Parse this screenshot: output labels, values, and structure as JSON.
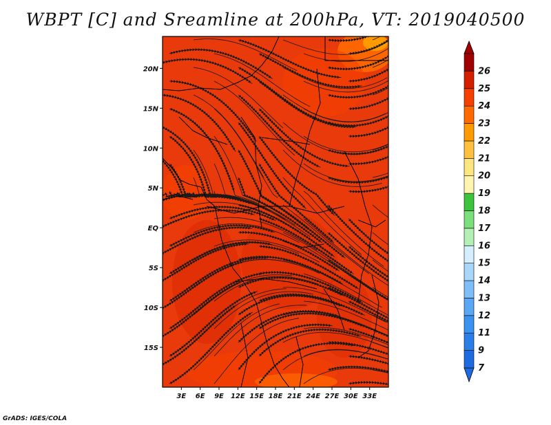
{
  "title": "WBPT [C] and Sreamline at 200hPa, VT: 2019040500",
  "credit": "GrADS: IGES/COLA",
  "map": {
    "lon_range": [
      0,
      36
    ],
    "lat_range": [
      -20,
      24
    ],
    "lon_ticks": [
      "3E",
      "6E",
      "9E",
      "12E",
      "15E",
      "18E",
      "21E",
      "24E",
      "27E",
      "30E",
      "33E"
    ],
    "lon_tick_values": [
      3,
      6,
      9,
      12,
      15,
      18,
      21,
      24,
      27,
      30,
      33
    ],
    "lat_ticks": [
      "20N",
      "15N",
      "10N",
      "5N",
      "EQ",
      "5S",
      "10S",
      "15S"
    ],
    "lat_tick_values": [
      20,
      15,
      10,
      5,
      0,
      -5,
      -10,
      -15
    ],
    "field_color": "#e83a0a",
    "streamline_color": "#1a1a1a",
    "boundary_color": "#000000"
  },
  "colorbar": {
    "labels": [
      "7",
      "9",
      "11",
      "12",
      "13",
      "14",
      "15",
      "16",
      "17",
      "18",
      "19",
      "20",
      "21",
      "22",
      "23",
      "24",
      "25",
      "26"
    ],
    "colors": [
      "#1e6ae0",
      "#2a7fe8",
      "#3a93f0",
      "#5aa8f5",
      "#7fbff8",
      "#a8d7fb",
      "#d4efff",
      "#b4f0b4",
      "#7be07b",
      "#3cc53c",
      "#fff5b0",
      "#ffe680",
      "#ffc040",
      "#ff9a00",
      "#ff6a00",
      "#f54000",
      "#d52000",
      "#a00000"
    ]
  }
}
